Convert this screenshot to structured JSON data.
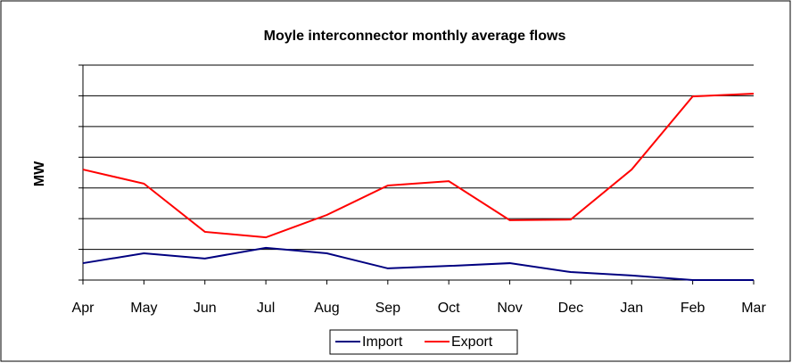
{
  "chart_data": {
    "type": "line",
    "title": "Moyle interconnector monthly average flows",
    "y_label": "MW",
    "categories": [
      "Apr",
      "May",
      "Jun",
      "Jul",
      "Aug",
      "Sep",
      "Oct",
      "Nov",
      "Dec",
      "Jan",
      "Feb",
      "Mar"
    ],
    "series": [
      {
        "name": "Import",
        "color": "#000080",
        "values": [
          0.55,
          0.87,
          0.7,
          1.05,
          0.87,
          0.38,
          0.46,
          0.55,
          0.26,
          0.15,
          0,
          0
        ]
      },
      {
        "name": "Export",
        "color": "#ff0000",
        "values": [
          3.6,
          3.14,
          1.57,
          1.39,
          2.12,
          3.08,
          3.22,
          1.95,
          1.97,
          3.6,
          5.98,
          6.07
        ]
      }
    ],
    "ylim": [
      0,
      7
    ],
    "yticks": [
      0,
      1,
      2,
      3,
      4,
      5,
      6,
      7
    ],
    "grid": true,
    "legend": "bottom"
  }
}
